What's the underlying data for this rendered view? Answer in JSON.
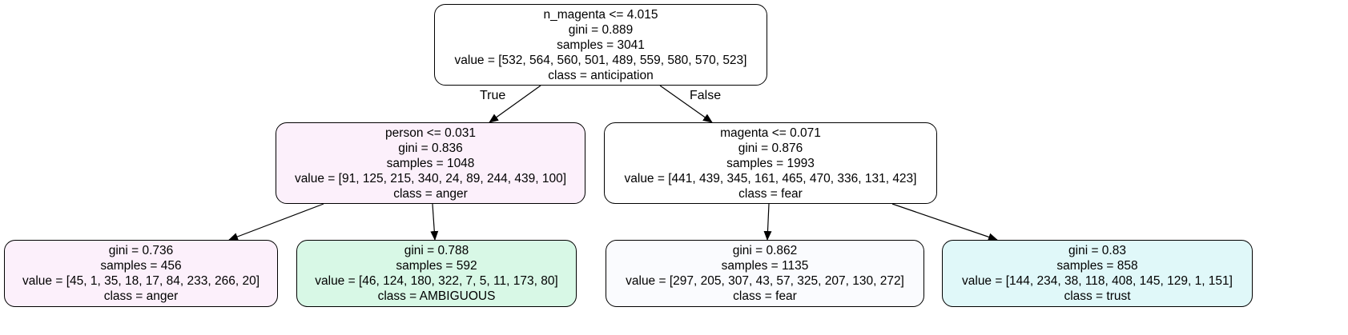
{
  "tree": {
    "nodes": [
      {
        "id": "root",
        "fill": "#ffffff",
        "lines": [
          "n_magenta <= 4.015",
          "gini = 0.889",
          "samples = 3041",
          "value = [532, 564, 560, 501, 489, 559, 580, 570, 523]",
          "class = anticipation"
        ]
      },
      {
        "id": "left",
        "fill": "#fcf0fb",
        "lines": [
          "person <= 0.031",
          "gini = 0.836",
          "samples = 1048",
          "value = [91, 125, 215, 340, 24, 89, 244, 439, 100]",
          "class = anger"
        ]
      },
      {
        "id": "right",
        "fill": "#ffffff",
        "lines": [
          "magenta <= 0.071",
          "gini = 0.876",
          "samples = 1993",
          "value = [441, 439, 345, 161, 465, 470, 336, 131, 423]",
          "class = fear"
        ]
      },
      {
        "id": "leaf1",
        "fill": "#fcf0fb",
        "lines": [
          "gini = 0.736",
          "samples = 456",
          "value = [45, 1, 35, 18, 17, 84, 233, 266, 20]",
          "class = anger"
        ]
      },
      {
        "id": "leaf2",
        "fill": "#d8f8e6",
        "lines": [
          "gini = 0.788",
          "samples = 592",
          "value = [46, 124, 180, 322, 7, 5, 11, 173, 80]",
          "class = AMBIGUOUS"
        ]
      },
      {
        "id": "leaf3",
        "fill": "#fafbfe",
        "lines": [
          "gini = 0.862",
          "samples = 1135",
          "value = [297, 205, 307, 43, 57, 325, 207, 130, 272]",
          "class = fear"
        ]
      },
      {
        "id": "leaf4",
        "fill": "#e0f8f9",
        "lines": [
          "gini = 0.83",
          "samples = 858",
          "value = [144, 234, 38, 118, 408, 145, 129, 1, 151]",
          "class = trust"
        ]
      }
    ],
    "edges": [
      {
        "from": "root",
        "to": "left",
        "label": "True"
      },
      {
        "from": "root",
        "to": "right",
        "label": "False"
      },
      {
        "from": "left",
        "to": "leaf1",
        "label": ""
      },
      {
        "from": "left",
        "to": "leaf2",
        "label": ""
      },
      {
        "from": "right",
        "to": "leaf3",
        "label": ""
      },
      {
        "from": "right",
        "to": "leaf4",
        "label": ""
      }
    ]
  }
}
